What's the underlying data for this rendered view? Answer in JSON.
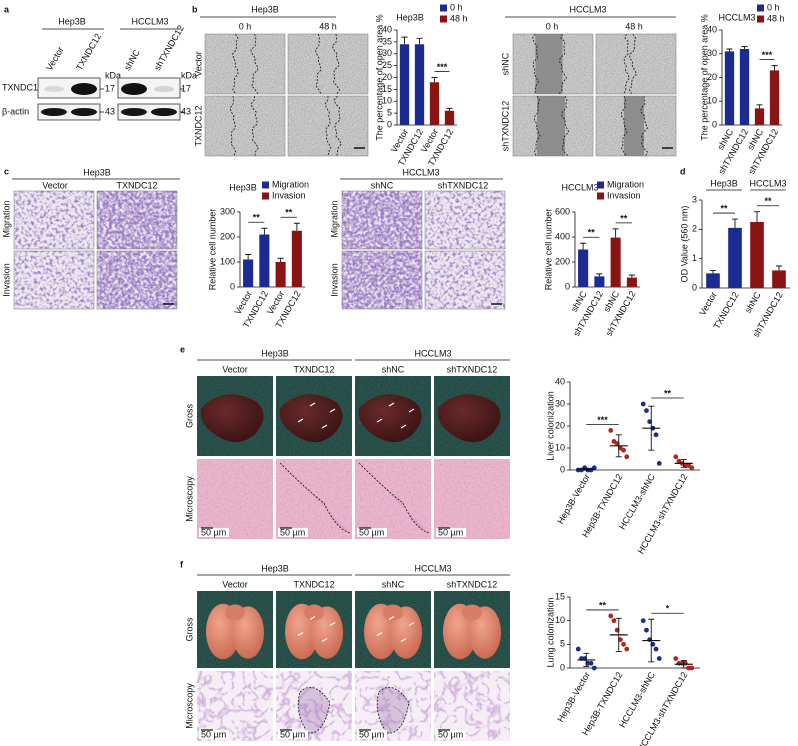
{
  "panel_labels": [
    "a",
    "b",
    "c",
    "d",
    "e",
    "f"
  ],
  "a": {
    "cell_lines": [
      "Hep3B",
      "HCCLM3"
    ],
    "lanes": [
      "Vector",
      "TXNDC12",
      "shNC",
      "shTXNDC12"
    ],
    "proteins": [
      "TXNDC12",
      "β-actin"
    ],
    "unit": "kDa",
    "markers": [
      "17",
      "43"
    ]
  },
  "b": {
    "cell_lines": [
      "Hep3B",
      "HCCLM3"
    ],
    "times": [
      "0 h",
      "48 h"
    ],
    "rows_hep3b": [
      "Vector",
      "TXNDC12"
    ],
    "rows_hcclm3": [
      "shNC",
      "shTXNDC12"
    ]
  },
  "c": {
    "cell_lines": [
      "Hep3B",
      "HCCLM3"
    ],
    "columns_hep3b": [
      "Vector",
      "TXNDC12"
    ],
    "columns_hcclm3": [
      "shNC",
      "shTXNDC12"
    ],
    "rows": [
      "Migration",
      "Invasion"
    ]
  },
  "e": {
    "cell_lines": [
      "Hep3B",
      "HCCLM3"
    ],
    "columns": [
      "Vector",
      "TXNDC12",
      "shNC",
      "shTXNDC12"
    ],
    "rows": [
      "Gross",
      "Microscopy"
    ],
    "scale": "50 µm"
  },
  "f": {
    "cell_lines": [
      "Hep3B",
      "HCCLM3"
    ],
    "columns": [
      "Vector",
      "TXNDC12",
      "shNC",
      "shTXNDC12"
    ],
    "rows": [
      "Gross",
      "Microscopy"
    ],
    "scale": "50 µm"
  },
  "chart_data": [
    {
      "type": "bar",
      "title": "Hep3B",
      "ylabel": "The percentage of open area %",
      "categories": [
        "Vector",
        "TXNDC12",
        "Vector",
        "TXNDC12"
      ],
      "series": [
        {
          "name": "0 h",
          "color": "#1c2b8f",
          "values": [
            34,
            34,
            null,
            null
          ],
          "errors": [
            3,
            2.5,
            null,
            null
          ]
        },
        {
          "name": "48 h",
          "color": "#8a1414",
          "values": [
            null,
            null,
            18,
            6
          ],
          "errors": [
            null,
            null,
            2,
            1
          ]
        }
      ],
      "ylim": [
        0,
        40
      ],
      "yticks": [
        0,
        5,
        10,
        15,
        20,
        25,
        30,
        35,
        40
      ],
      "annotations": [
        "***"
      ],
      "legend": "upper right"
    },
    {
      "type": "bar",
      "title": "HCCLM3",
      "ylabel": "The percentage of open area %",
      "categories": [
        "shNC",
        "shTXNDC12",
        "shNC",
        "shTXNDC12"
      ],
      "series": [
        {
          "name": "0 h",
          "color": "#1c2b8f",
          "values": [
            31,
            32,
            null,
            null
          ],
          "errors": [
            1,
            1,
            null,
            null
          ]
        },
        {
          "name": "48 h",
          "color": "#8a1414",
          "values": [
            null,
            null,
            7,
            23
          ],
          "errors": [
            null,
            null,
            1.5,
            2
          ]
        }
      ],
      "ylim": [
        0,
        40
      ],
      "yticks": [
        0,
        10,
        20,
        30,
        40
      ],
      "annotations": [
        "***"
      ],
      "legend": "upper right"
    },
    {
      "type": "bar",
      "title": "Hep3B",
      "ylabel": "Relative cell number",
      "categories": [
        "Vector",
        "TXNDC12",
        "Vector",
        "TXNDC12"
      ],
      "series": [
        {
          "name": "Migration",
          "color": "#1c2b8f",
          "values": [
            110,
            210,
            null,
            null
          ],
          "errors": [
            20,
            25,
            null,
            null
          ]
        },
        {
          "name": "Invasion",
          "color": "#8a1414",
          "values": [
            null,
            null,
            100,
            225
          ],
          "errors": [
            null,
            null,
            15,
            30
          ]
        }
      ],
      "ylim": [
        0,
        300
      ],
      "yticks": [
        0,
        100,
        200,
        300
      ],
      "annotations": [
        "**",
        "**"
      ],
      "legend": "upper right"
    },
    {
      "type": "bar",
      "title": "HCCLM3",
      "ylabel": "Relative cell number",
      "categories": [
        "shNC",
        "shTXNDC12",
        "shNC",
        "shTXNDC12"
      ],
      "series": [
        {
          "name": "Migration",
          "color": "#1c2b8f",
          "values": [
            300,
            85,
            null,
            null
          ],
          "errors": [
            50,
            20,
            null,
            null
          ]
        },
        {
          "name": "Invasion",
          "color": "#8a1414",
          "values": [
            null,
            null,
            395,
            75
          ],
          "errors": [
            null,
            null,
            70,
            20
          ]
        }
      ],
      "ylim": [
        0,
        600
      ],
      "yticks": [
        0,
        200,
        400,
        600
      ],
      "annotations": [
        "**",
        "**"
      ],
      "legend": "upper right"
    },
    {
      "type": "bar",
      "ylabel": "OD Value (560 nm)",
      "groups": [
        "Hep3B",
        "HCCLM3"
      ],
      "categories": [
        "Vector",
        "TXNDC12",
        "shNC",
        "shTXNDC12"
      ],
      "values": [
        0.5,
        2.05,
        2.25,
        0.6
      ],
      "errors": [
        0.1,
        0.3,
        0.35,
        0.15
      ],
      "colors": [
        "#1c2b8f",
        "#1c2b8f",
        "#8a1414",
        "#8a1414"
      ],
      "ylim": [
        0,
        3
      ],
      "yticks": [
        0,
        1,
        2,
        3
      ],
      "annotations": [
        "**",
        "**"
      ]
    },
    {
      "type": "dot",
      "ylabel": "Liver colonization",
      "categories": [
        "Hep3B-Vector",
        "Hep3B-TXNDC12",
        "HCCLM3-shNC",
        "HCCLM3-shTXNDC12"
      ],
      "points": [
        [
          0,
          0,
          1,
          0,
          0,
          1
        ],
        [
          18,
          13,
          12,
          10,
          9,
          6
        ],
        [
          30,
          27,
          22,
          19,
          16,
          3
        ],
        [
          6,
          4,
          3,
          2,
          2,
          1
        ]
      ],
      "values": [
        0.3,
        11,
        19,
        3
      ],
      "errors": [
        0.4,
        5,
        10,
        1.8
      ],
      "colors": [
        "#1c2b8f",
        "#b0261f",
        "#1c2b8f",
        "#b0261f"
      ],
      "ylim": [
        0,
        40
      ],
      "yticks": [
        0,
        10,
        20,
        30,
        40
      ],
      "annotations": [
        "***",
        "**"
      ]
    },
    {
      "type": "dot",
      "ylabel": "Lung colonization",
      "categories": [
        "Hep3B-Vector",
        "Hep3B-TXNDC12",
        "HCCLM3-shNC",
        "HCCLM3-shTXNDC12"
      ],
      "points": [
        [
          4,
          2,
          2,
          1,
          1,
          0
        ],
        [
          11,
          10,
          8,
          6,
          5,
          4
        ],
        [
          10,
          8,
          6,
          5,
          4,
          2
        ],
        [
          2,
          1,
          1,
          1,
          0,
          0
        ]
      ],
      "values": [
        1.7,
        7,
        5.8,
        0.8
      ],
      "errors": [
        1.4,
        3.5,
        4.5,
        0.8
      ],
      "colors": [
        "#1c2b8f",
        "#b0261f",
        "#1c2b8f",
        "#b0261f"
      ],
      "ylim": [
        0,
        15
      ],
      "yticks": [
        0,
        5,
        10,
        15
      ],
      "annotations": [
        "**",
        "*"
      ]
    }
  ]
}
